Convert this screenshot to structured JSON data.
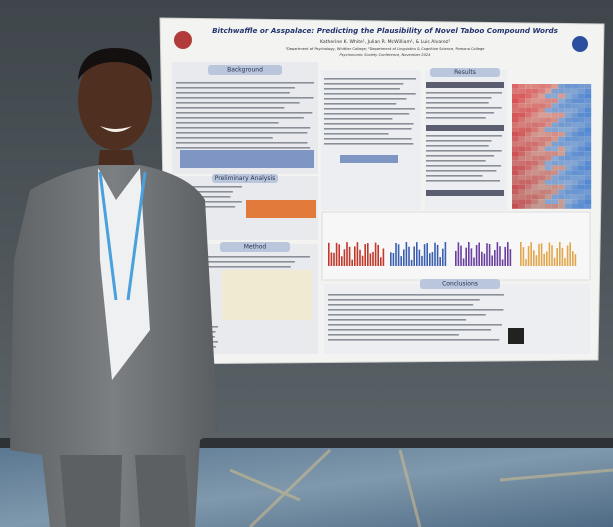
{
  "poster": {
    "title": "Bitchwaffle or Asspalace: Predicting the Plausibility of Novel Taboo Compound Words",
    "authors": "Katherine K. White¹, Julian R. McWilliam¹, & Luis Alvarez²",
    "affiliations": "¹Department of Psychology, Whittier College; ²Department of Linguistics & Cognitive Science, Pomona College",
    "conference": "Psychonomic Society Conference, November 2024",
    "sections": {
      "background": "Background",
      "preliminary": "Preliminary Analysis",
      "method": "Method",
      "results": "Results",
      "conclusions": "Conclusions"
    }
  }
}
